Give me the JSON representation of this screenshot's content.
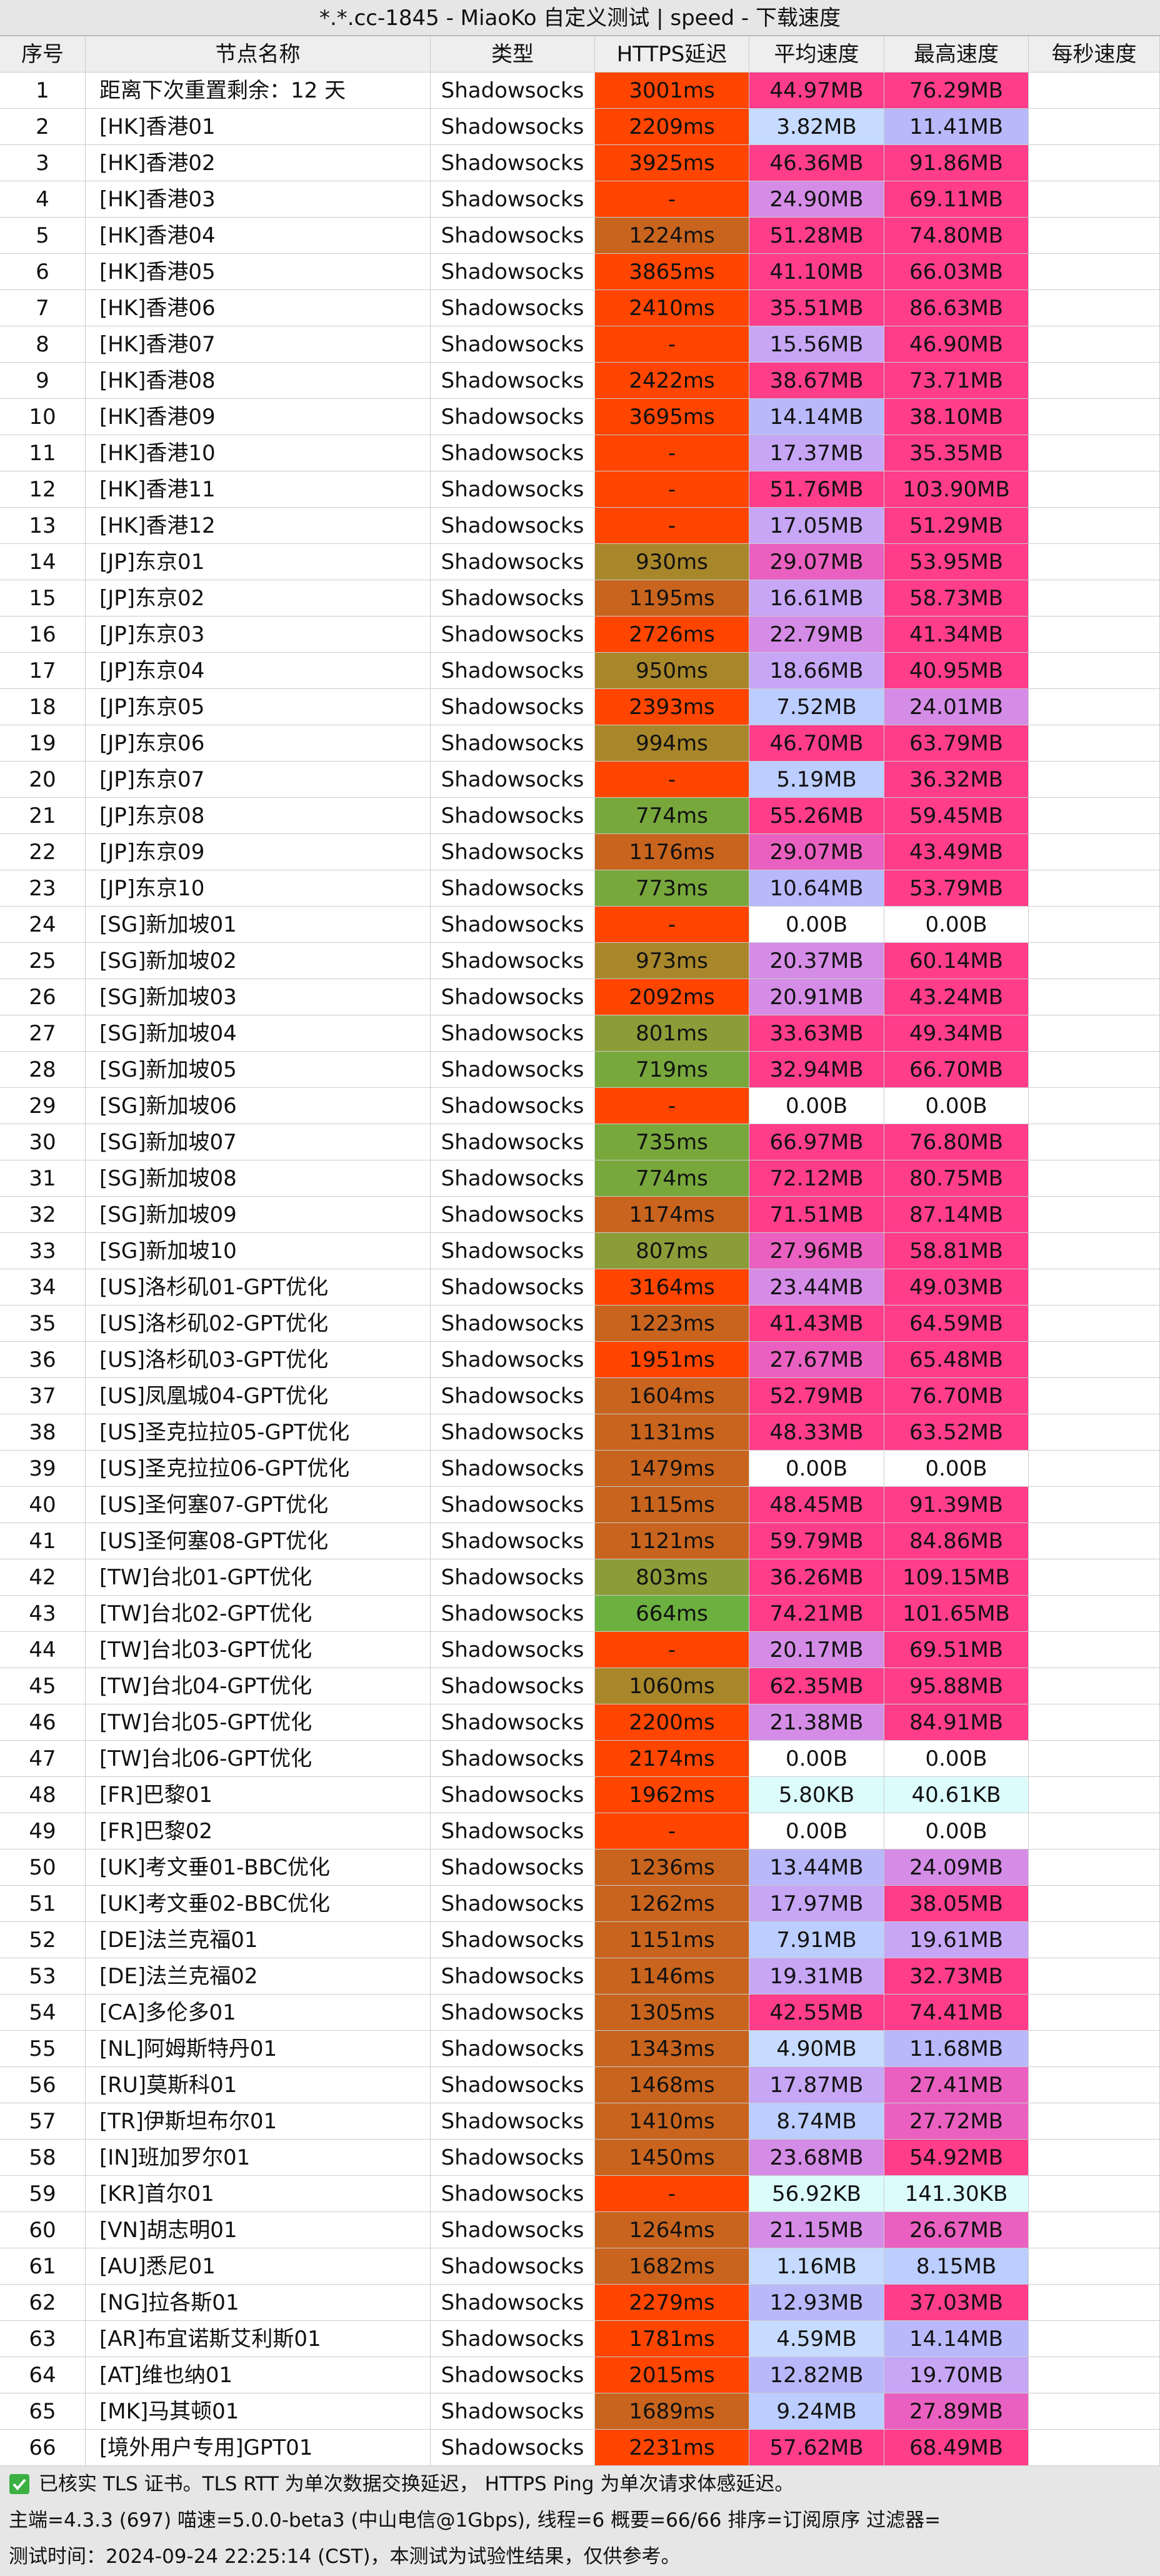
{
  "header": {
    "title": "*.*.cc-1845 - MiaoKo 自定义测试 | speed - 下载速度"
  },
  "table": {
    "columns": [
      "序号",
      "节点名称",
      "类型",
      "HTTPS延迟",
      "平均速度",
      "最高速度",
      "每秒速度"
    ],
    "rows": [
      [
        "1",
        "距离下次重置剩余：12 天",
        "Shadowsocks",
        "3001ms",
        "44.97MB",
        "76.29MB"
      ],
      [
        "2",
        "[HK]香港01",
        "Shadowsocks",
        "2209ms",
        "3.82MB",
        "11.41MB"
      ],
      [
        "3",
        "[HK]香港02",
        "Shadowsocks",
        "3925ms",
        "46.36MB",
        "91.86MB"
      ],
      [
        "4",
        "[HK]香港03",
        "Shadowsocks",
        "-",
        "24.90MB",
        "69.11MB"
      ],
      [
        "5",
        "[HK]香港04",
        "Shadowsocks",
        "1224ms",
        "51.28MB",
        "74.80MB"
      ],
      [
        "6",
        "[HK]香港05",
        "Shadowsocks",
        "3865ms",
        "41.10MB",
        "66.03MB"
      ],
      [
        "7",
        "[HK]香港06",
        "Shadowsocks",
        "2410ms",
        "35.51MB",
        "86.63MB"
      ],
      [
        "8",
        "[HK]香港07",
        "Shadowsocks",
        "-",
        "15.56MB",
        "46.90MB"
      ],
      [
        "9",
        "[HK]香港08",
        "Shadowsocks",
        "2422ms",
        "38.67MB",
        "73.71MB"
      ],
      [
        "10",
        "[HK]香港09",
        "Shadowsocks",
        "3695ms",
        "14.14MB",
        "38.10MB"
      ],
      [
        "11",
        "[HK]香港10",
        "Shadowsocks",
        "-",
        "17.37MB",
        "35.35MB"
      ],
      [
        "12",
        "[HK]香港11",
        "Shadowsocks",
        "-",
        "51.76MB",
        "103.90MB"
      ],
      [
        "13",
        "[HK]香港12",
        "Shadowsocks",
        "-",
        "17.05MB",
        "51.29MB"
      ],
      [
        "14",
        "[JP]东京01",
        "Shadowsocks",
        "930ms",
        "29.07MB",
        "53.95MB"
      ],
      [
        "15",
        "[JP]东京02",
        "Shadowsocks",
        "1195ms",
        "16.61MB",
        "58.73MB"
      ],
      [
        "16",
        "[JP]东京03",
        "Shadowsocks",
        "2726ms",
        "22.79MB",
        "41.34MB"
      ],
      [
        "17",
        "[JP]东京04",
        "Shadowsocks",
        "950ms",
        "18.66MB",
        "40.95MB"
      ],
      [
        "18",
        "[JP]东京05",
        "Shadowsocks",
        "2393ms",
        "7.52MB",
        "24.01MB"
      ],
      [
        "19",
        "[JP]东京06",
        "Shadowsocks",
        "994ms",
        "46.70MB",
        "63.79MB"
      ],
      [
        "20",
        "[JP]东京07",
        "Shadowsocks",
        "-",
        "5.19MB",
        "36.32MB"
      ],
      [
        "21",
        "[JP]东京08",
        "Shadowsocks",
        "774ms",
        "55.26MB",
        "59.45MB"
      ],
      [
        "22",
        "[JP]东京09",
        "Shadowsocks",
        "1176ms",
        "29.07MB",
        "43.49MB"
      ],
      [
        "23",
        "[JP]东京10",
        "Shadowsocks",
        "773ms",
        "10.64MB",
        "53.79MB"
      ],
      [
        "24",
        "[SG]新加坡01",
        "Shadowsocks",
        "-",
        "0.00B",
        "0.00B"
      ],
      [
        "25",
        "[SG]新加坡02",
        "Shadowsocks",
        "973ms",
        "20.37MB",
        "60.14MB"
      ],
      [
        "26",
        "[SG]新加坡03",
        "Shadowsocks",
        "2092ms",
        "20.91MB",
        "43.24MB"
      ],
      [
        "27",
        "[SG]新加坡04",
        "Shadowsocks",
        "801ms",
        "33.63MB",
        "49.34MB"
      ],
      [
        "28",
        "[SG]新加坡05",
        "Shadowsocks",
        "719ms",
        "32.94MB",
        "66.70MB"
      ],
      [
        "29",
        "[SG]新加坡06",
        "Shadowsocks",
        "-",
        "0.00B",
        "0.00B"
      ],
      [
        "30",
        "[SG]新加坡07",
        "Shadowsocks",
        "735ms",
        "66.97MB",
        "76.80MB"
      ],
      [
        "31",
        "[SG]新加坡08",
        "Shadowsocks",
        "774ms",
        "72.12MB",
        "80.75MB"
      ],
      [
        "32",
        "[SG]新加坡09",
        "Shadowsocks",
        "1174ms",
        "71.51MB",
        "87.14MB"
      ],
      [
        "33",
        "[SG]新加坡10",
        "Shadowsocks",
        "807ms",
        "27.96MB",
        "58.81MB"
      ],
      [
        "34",
        "[US]洛杉矶01-GPT优化",
        "Shadowsocks",
        "3164ms",
        "23.44MB",
        "49.03MB"
      ],
      [
        "35",
        "[US]洛杉矶02-GPT优化",
        "Shadowsocks",
        "1223ms",
        "41.43MB",
        "64.59MB"
      ],
      [
        "36",
        "[US]洛杉矶03-GPT优化",
        "Shadowsocks",
        "1951ms",
        "27.67MB",
        "65.48MB"
      ],
      [
        "37",
        "[US]凤凰城04-GPT优化",
        "Shadowsocks",
        "1604ms",
        "52.79MB",
        "76.70MB"
      ],
      [
        "38",
        "[US]圣克拉拉05-GPT优化",
        "Shadowsocks",
        "1131ms",
        "48.33MB",
        "63.52MB"
      ],
      [
        "39",
        "[US]圣克拉拉06-GPT优化",
        "Shadowsocks",
        "1479ms",
        "0.00B",
        "0.00B"
      ],
      [
        "40",
        "[US]圣何塞07-GPT优化",
        "Shadowsocks",
        "1115ms",
        "48.45MB",
        "91.39MB"
      ],
      [
        "41",
        "[US]圣何塞08-GPT优化",
        "Shadowsocks",
        "1121ms",
        "59.79MB",
        "84.86MB"
      ],
      [
        "42",
        "[TW]台北01-GPT优化",
        "Shadowsocks",
        "803ms",
        "36.26MB",
        "109.15MB"
      ],
      [
        "43",
        "[TW]台北02-GPT优化",
        "Shadowsocks",
        "664ms",
        "74.21MB",
        "101.65MB"
      ],
      [
        "44",
        "[TW]台北03-GPT优化",
        "Shadowsocks",
        "-",
        "20.17MB",
        "69.51MB"
      ],
      [
        "45",
        "[TW]台北04-GPT优化",
        "Shadowsocks",
        "1060ms",
        "62.35MB",
        "95.88MB"
      ],
      [
        "46",
        "[TW]台北05-GPT优化",
        "Shadowsocks",
        "2200ms",
        "21.38MB",
        "84.91MB"
      ],
      [
        "47",
        "[TW]台北06-GPT优化",
        "Shadowsocks",
        "2174ms",
        "0.00B",
        "0.00B"
      ],
      [
        "48",
        "[FR]巴黎01",
        "Shadowsocks",
        "1962ms",
        "5.80KB",
        "40.61KB"
      ],
      [
        "49",
        "[FR]巴黎02",
        "Shadowsocks",
        "-",
        "0.00B",
        "0.00B"
      ],
      [
        "50",
        "[UK]考文垂01-BBC优化",
        "Shadowsocks",
        "1236ms",
        "13.44MB",
        "24.09MB"
      ],
      [
        "51",
        "[UK]考文垂02-BBC优化",
        "Shadowsocks",
        "1262ms",
        "17.97MB",
        "38.05MB"
      ],
      [
        "52",
        "[DE]法兰克福01",
        "Shadowsocks",
        "1151ms",
        "7.91MB",
        "19.61MB"
      ],
      [
        "53",
        "[DE]法兰克福02",
        "Shadowsocks",
        "1146ms",
        "19.31MB",
        "32.73MB"
      ],
      [
        "54",
        "[CA]多伦多01",
        "Shadowsocks",
        "1305ms",
        "42.55MB",
        "74.41MB"
      ],
      [
        "55",
        "[NL]阿姆斯特丹01",
        "Shadowsocks",
        "1343ms",
        "4.90MB",
        "11.68MB"
      ],
      [
        "56",
        "[RU]莫斯科01",
        "Shadowsocks",
        "1468ms",
        "17.87MB",
        "27.41MB"
      ],
      [
        "57",
        "[TR]伊斯坦布尔01",
        "Shadowsocks",
        "1410ms",
        "8.74MB",
        "27.72MB"
      ],
      [
        "58",
        "[IN]班加罗尔01",
        "Shadowsocks",
        "1450ms",
        "23.68MB",
        "54.92MB"
      ],
      [
        "59",
        "[KR]首尔01",
        "Shadowsocks",
        "-",
        "56.92KB",
        "141.30KB"
      ],
      [
        "60",
        "[VN]胡志明01",
        "Shadowsocks",
        "1264ms",
        "21.15MB",
        "26.67MB"
      ],
      [
        "61",
        "[AU]悉尼01",
        "Shadowsocks",
        "1682ms",
        "1.16MB",
        "8.15MB"
      ],
      [
        "62",
        "[NG]拉各斯01",
        "Shadowsocks",
        "2279ms",
        "12.93MB",
        "37.03MB"
      ],
      [
        "63",
        "[AR]布宜诺斯艾利斯01",
        "Shadowsocks",
        "1781ms",
        "4.59MB",
        "14.14MB"
      ],
      [
        "64",
        "[AT]维也纳01",
        "Shadowsocks",
        "2015ms",
        "12.82MB",
        "19.70MB"
      ],
      [
        "65",
        "[MK]马其顿01",
        "Shadowsocks",
        "1689ms",
        "9.24MB",
        "27.89MB"
      ],
      [
        "66",
        "[境外用户专用]GPT01",
        "Shadowsocks",
        "2231ms",
        "57.62MB",
        "68.49MB"
      ]
    ],
    "cell_colors": [
      [
        "#ff4500",
        "#ff3d8b",
        "#ff3d8b"
      ],
      [
        "#ff4500",
        "#c6dbff",
        "#b8b8fb"
      ],
      [
        "#ff4500",
        "#ff3d8b",
        "#ff3d8b"
      ],
      [
        "#ff4500",
        "#d48ce6",
        "#ff3d8b"
      ],
      [
        "#c8641e",
        "#ff3d8b",
        "#ff3d8b"
      ],
      [
        "#ff4500",
        "#ff3d8b",
        "#ff3d8b"
      ],
      [
        "#ff4500",
        "#ff3d8b",
        "#ff3d8b"
      ],
      [
        "#ff4500",
        "#c6a6f5",
        "#ff3d8b"
      ],
      [
        "#ff4500",
        "#ff3d8b",
        "#ff3d8b"
      ],
      [
        "#ff4500",
        "#b8b8fb",
        "#ff3d8b"
      ],
      [
        "#ff4500",
        "#c6a6f5",
        "#ff3d8b"
      ],
      [
        "#ff4500",
        "#ff3d8b",
        "#ff3d8b"
      ],
      [
        "#ff4500",
        "#c6a6f5",
        "#ff3d8b"
      ],
      [
        "#a8862a",
        "#e960c0",
        "#ff3d8b"
      ],
      [
        "#c8641e",
        "#c6a6f5",
        "#ff3d8b"
      ],
      [
        "#ff4500",
        "#d48ce6",
        "#ff3d8b"
      ],
      [
        "#a8862a",
        "#c6a6f5",
        "#ff3d8b"
      ],
      [
        "#ff4500",
        "#bccdff",
        "#d48ce6"
      ],
      [
        "#a8862a",
        "#ff3d8b",
        "#ff3d8b"
      ],
      [
        "#ff4500",
        "#bccdff",
        "#ff3d8b"
      ],
      [
        "#78a83c",
        "#ff3d8b",
        "#ff3d8b"
      ],
      [
        "#c8641e",
        "#e960c0",
        "#ff3d8b"
      ],
      [
        "#78a83c",
        "#b8b8fb",
        "#ff3d8b"
      ],
      [
        "#ff4500",
        "#ffffff",
        "#ffffff"
      ],
      [
        "#a8862a",
        "#d48ce6",
        "#ff3d8b"
      ],
      [
        "#ff4500",
        "#d48ce6",
        "#ff3d8b"
      ],
      [
        "#8c9c38",
        "#ff3d8b",
        "#ff3d8b"
      ],
      [
        "#78a83c",
        "#ff3d8b",
        "#ff3d8b"
      ],
      [
        "#ff4500",
        "#ffffff",
        "#ffffff"
      ],
      [
        "#78a83c",
        "#ff3d8b",
        "#ff3d8b"
      ],
      [
        "#78a83c",
        "#ff3d8b",
        "#ff3d8b"
      ],
      [
        "#c8641e",
        "#ff3d8b",
        "#ff3d8b"
      ],
      [
        "#8c9c38",
        "#e960c0",
        "#ff3d8b"
      ],
      [
        "#ff4500",
        "#d48ce6",
        "#ff3d8b"
      ],
      [
        "#c8641e",
        "#ff3d8b",
        "#ff3d8b"
      ],
      [
        "#ff4500",
        "#e960c0",
        "#ff3d8b"
      ],
      [
        "#c8641e",
        "#ff3d8b",
        "#ff3d8b"
      ],
      [
        "#c8641e",
        "#ff3d8b",
        "#ff3d8b"
      ],
      [
        "#c8641e",
        "#ffffff",
        "#ffffff"
      ],
      [
        "#c8641e",
        "#ff3d8b",
        "#ff3d8b"
      ],
      [
        "#c8641e",
        "#ff3d8b",
        "#ff3d8b"
      ],
      [
        "#8c9c38",
        "#ff3d8b",
        "#ff3d8b"
      ],
      [
        "#6cb040",
        "#ff3d8b",
        "#ff3d8b"
      ],
      [
        "#ff4500",
        "#d48ce6",
        "#ff3d8b"
      ],
      [
        "#a8862a",
        "#ff3d8b",
        "#ff3d8b"
      ],
      [
        "#ff4500",
        "#d48ce6",
        "#ff3d8b"
      ],
      [
        "#ff4500",
        "#ffffff",
        "#ffffff"
      ],
      [
        "#ff4500",
        "#dcfcfc",
        "#dcfcfc"
      ],
      [
        "#ff4500",
        "#ffffff",
        "#ffffff"
      ],
      [
        "#c8641e",
        "#b8b8fb",
        "#d48ce6"
      ],
      [
        "#c8641e",
        "#c6a6f5",
        "#ff3d8b"
      ],
      [
        "#c8641e",
        "#bccdff",
        "#c6a6f5"
      ],
      [
        "#c8641e",
        "#c6a6f5",
        "#ff3d8b"
      ],
      [
        "#c8641e",
        "#ff3d8b",
        "#ff3d8b"
      ],
      [
        "#c8641e",
        "#c6dbff",
        "#b8b8fb"
      ],
      [
        "#c8641e",
        "#c6a6f5",
        "#e960c0"
      ],
      [
        "#c8641e",
        "#bccdff",
        "#e960c0"
      ],
      [
        "#c8641e",
        "#d48ce6",
        "#ff3d8b"
      ],
      [
        "#ff4500",
        "#dcfcfc",
        "#dcfcfc"
      ],
      [
        "#c8641e",
        "#d48ce6",
        "#e960c0"
      ],
      [
        "#c8641e",
        "#c6dbff",
        "#bccdff"
      ],
      [
        "#ff4500",
        "#b8b8fb",
        "#ff3d8b"
      ],
      [
        "#ff4500",
        "#c6dbff",
        "#b8b8fb"
      ],
      [
        "#ff4500",
        "#b8b8fb",
        "#c6a6f5"
      ],
      [
        "#c8641e",
        "#bccdff",
        "#e960c0"
      ],
      [
        "#ff4500",
        "#ff3d8b",
        "#ff3d8b"
      ]
    ]
  },
  "footer": {
    "lines": [
      "已核实 TLS 证书。TLS RTT 为单次数据交换延迟， HTTPS Ping 为单次请求体感延迟。",
      "主端=4.3.3 (697) 喵速=5.0.0-beta3 (中山电信@1Gbps), 线程=6 概要=66/66 排序=订阅原序 过滤器=",
      "测试时间：2024-09-24 22:25:14 (CST)，本测试为试验性结果，仅供参考。"
    ]
  }
}
